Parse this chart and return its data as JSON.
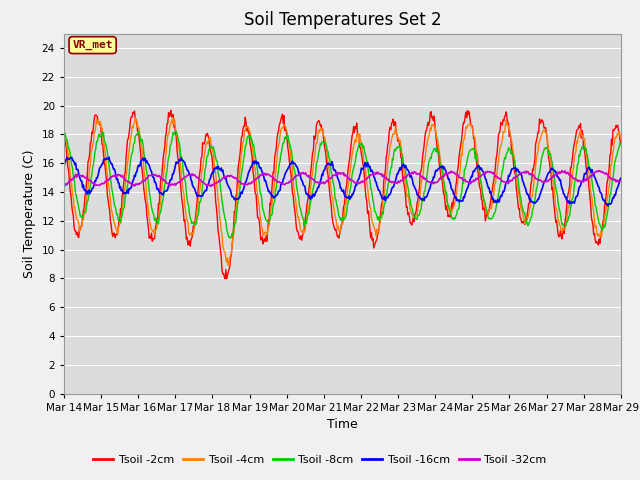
{
  "title": "Soil Temperatures Set 2",
  "xlabel": "Time",
  "ylabel": "Soil Temperature (C)",
  "ylim": [
    0,
    25
  ],
  "yticks": [
    0,
    2,
    4,
    6,
    8,
    10,
    12,
    14,
    16,
    18,
    20,
    22,
    24
  ],
  "xtick_labels": [
    "Mar 14",
    "Mar 15",
    "Mar 16",
    "Mar 17",
    "Mar 18",
    "Mar 19",
    "Mar 20",
    "Mar 21",
    "Mar 22",
    "Mar 23",
    "Mar 24",
    "Mar 25",
    "Mar 26",
    "Mar 27",
    "Mar 28",
    "Mar 29"
  ],
  "series_colors": {
    "Tsoil -2cm": "#ff0000",
    "Tsoil -4cm": "#ff8000",
    "Tsoil -8cm": "#00cc00",
    "Tsoil -16cm": "#0000ff",
    "Tsoil -32cm": "#cc00cc"
  },
  "annotation_text": "VR_met",
  "annotation_color": "#8b0000",
  "annotation_bg": "#ffff99",
  "bg_color": "#dcdcdc",
  "title_fontsize": 12,
  "axis_label_fontsize": 9,
  "tick_fontsize": 7.5
}
